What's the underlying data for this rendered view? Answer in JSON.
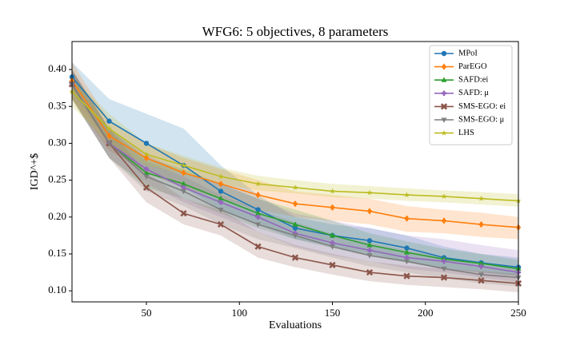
{
  "chart_data": {
    "type": "line",
    "title": "WFG6: 5 objectives, 8 parameters",
    "x_label": "Evaluations",
    "y_label": "IGD^+$",
    "x": [
      10,
      30,
      50,
      70,
      90,
      110,
      130,
      150,
      170,
      190,
      210,
      230,
      250
    ],
    "xlim": [
      10,
      250
    ],
    "xticks": [
      50,
      100,
      150,
      200,
      250
    ],
    "ylim": [
      0.085,
      0.438
    ],
    "yticks": [
      {
        "value": 0.1,
        "label": "0.10"
      },
      0.15,
      {
        "value": 0.2,
        "label": "0.20"
      },
      0.25,
      {
        "value": 0.3,
        "label": "0.30"
      },
      0.35,
      {
        "value": 0.4,
        "label": "0.40"
      }
    ],
    "legend": "upper right",
    "series": [
      {
        "name": "MPoI",
        "color": "#1f77b4",
        "marker": "circle",
        "values": [
          0.39,
          0.33,
          0.3,
          0.27,
          0.235,
          0.21,
          0.185,
          0.175,
          0.168,
          0.158,
          0.145,
          0.138,
          0.132
        ],
        "lower": [
          0.37,
          0.3,
          0.26,
          0.24,
          0.21,
          0.19,
          0.17,
          0.16,
          0.15,
          0.14,
          0.13,
          0.125,
          0.12
        ],
        "upper": [
          0.41,
          0.36,
          0.34,
          0.32,
          0.27,
          0.23,
          0.2,
          0.19,
          0.185,
          0.175,
          0.16,
          0.15,
          0.145
        ]
      },
      {
        "name": "ParEGO",
        "color": "#ff7f0e",
        "marker": "diamond",
        "values": [
          0.385,
          0.31,
          0.28,
          0.26,
          0.245,
          0.23,
          0.218,
          0.213,
          0.208,
          0.198,
          0.195,
          0.19,
          0.186
        ],
        "lower": [
          0.36,
          0.29,
          0.26,
          0.24,
          0.225,
          0.21,
          0.2,
          0.195,
          0.19,
          0.18,
          0.178,
          0.173,
          0.17
        ],
        "upper": [
          0.41,
          0.33,
          0.3,
          0.28,
          0.265,
          0.25,
          0.235,
          0.23,
          0.225,
          0.215,
          0.21,
          0.206,
          0.2
        ]
      },
      {
        "name": "SAFD:ei",
        "color": "#2ca02c",
        "marker": "triangle-up",
        "values": [
          0.38,
          0.3,
          0.26,
          0.245,
          0.225,
          0.205,
          0.19,
          0.175,
          0.162,
          0.152,
          0.143,
          0.137,
          0.13
        ],
        "lower": [
          0.36,
          0.28,
          0.24,
          0.225,
          0.205,
          0.185,
          0.17,
          0.158,
          0.147,
          0.138,
          0.13,
          0.125,
          0.12
        ],
        "upper": [
          0.4,
          0.32,
          0.28,
          0.265,
          0.245,
          0.225,
          0.21,
          0.195,
          0.178,
          0.167,
          0.157,
          0.15,
          0.142
        ]
      },
      {
        "name": "SAFD: μ",
        "color": "#9467bd",
        "marker": "plus",
        "values": [
          0.38,
          0.3,
          0.265,
          0.24,
          0.22,
          0.2,
          0.178,
          0.165,
          0.155,
          0.145,
          0.14,
          0.133,
          0.125
        ],
        "lower": [
          0.36,
          0.28,
          0.245,
          0.22,
          0.2,
          0.18,
          0.16,
          0.148,
          0.14,
          0.13,
          0.125,
          0.118,
          0.112
        ],
        "upper": [
          0.4,
          0.32,
          0.285,
          0.26,
          0.245,
          0.225,
          0.205,
          0.195,
          0.185,
          0.175,
          0.17,
          0.162,
          0.155
        ]
      },
      {
        "name": "SMS-EGO: ei",
        "color": "#8c564b",
        "marker": "x",
        "values": [
          0.38,
          0.3,
          0.24,
          0.205,
          0.19,
          0.16,
          0.145,
          0.135,
          0.125,
          0.12,
          0.118,
          0.114,
          0.11
        ],
        "lower": [
          0.36,
          0.28,
          0.22,
          0.19,
          0.175,
          0.145,
          0.132,
          0.122,
          0.113,
          0.108,
          0.105,
          0.102,
          0.098
        ],
        "upper": [
          0.4,
          0.32,
          0.26,
          0.225,
          0.21,
          0.18,
          0.162,
          0.15,
          0.14,
          0.134,
          0.13,
          0.127,
          0.123
        ]
      },
      {
        "name": "SMS-EGO: μ",
        "color": "#7f7f7f",
        "marker": "triangle-down",
        "values": [
          0.38,
          0.3,
          0.255,
          0.235,
          0.21,
          0.19,
          0.175,
          0.16,
          0.148,
          0.14,
          0.13,
          0.122,
          0.118
        ],
        "lower": [
          0.36,
          0.28,
          0.235,
          0.215,
          0.19,
          0.17,
          0.158,
          0.145,
          0.133,
          0.125,
          0.117,
          0.11,
          0.106
        ],
        "upper": [
          0.4,
          0.32,
          0.275,
          0.255,
          0.23,
          0.21,
          0.193,
          0.177,
          0.165,
          0.155,
          0.145,
          0.135,
          0.13
        ]
      },
      {
        "name": "LHS",
        "color": "#bcbd22",
        "marker": "star",
        "values": [
          0.37,
          0.32,
          0.285,
          0.27,
          0.255,
          0.245,
          0.24,
          0.235,
          0.233,
          0.23,
          0.228,
          0.225,
          0.222
        ],
        "lower": [
          0.35,
          0.3,
          0.27,
          0.258,
          0.245,
          0.236,
          0.232,
          0.227,
          0.225,
          0.222,
          0.22,
          0.217,
          0.214
        ],
        "upper": [
          0.39,
          0.34,
          0.3,
          0.283,
          0.267,
          0.256,
          0.25,
          0.245,
          0.242,
          0.239,
          0.236,
          0.234,
          0.231
        ]
      }
    ]
  }
}
